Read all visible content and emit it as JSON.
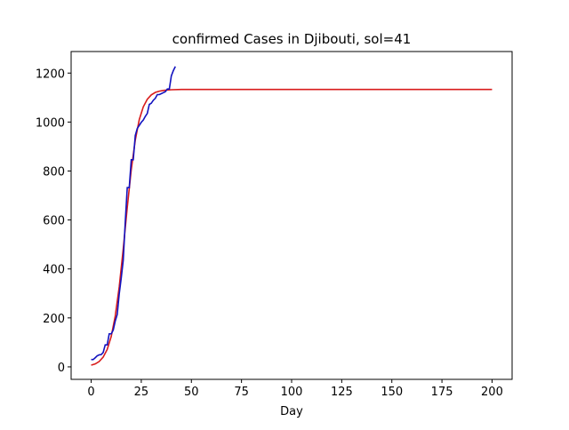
{
  "chart_data": {
    "type": "line",
    "title": "confirmed Cases in Djibouti, sol=41",
    "xlabel": "Day",
    "xlim": [
      -10,
      210
    ],
    "xticks": [
      0,
      25,
      50,
      75,
      100,
      125,
      150,
      175,
      200
    ],
    "ylim": [
      -51,
      1288
    ],
    "yticks": [
      0,
      200,
      400,
      600,
      800,
      1000,
      1200
    ],
    "grid": false,
    "series": [
      {
        "color": "#d81b1b",
        "x": [
          0,
          2,
          4,
          6,
          8,
          10,
          12,
          14,
          16,
          18,
          20,
          22,
          24,
          26,
          28,
          30,
          32,
          34,
          36,
          38,
          40,
          45,
          50,
          75,
          100,
          125,
          150,
          175,
          200
        ],
        "values": [
          7,
          12,
          22,
          40,
          71,
          124,
          207,
          327,
          482,
          651,
          805,
          926,
          1010,
          1062,
          1093,
          1111,
          1121,
          1126,
          1129,
          1131,
          1132,
          1133,
          1133,
          1133,
          1133,
          1133,
          1133,
          1133,
          1133
        ]
      },
      {
        "color": "#1212bf",
        "x": [
          0,
          1,
          2,
          3,
          4,
          5,
          6,
          7,
          8,
          9,
          10,
          11,
          12,
          13,
          14,
          15,
          16,
          17,
          18,
          19,
          20,
          21,
          22,
          23,
          24,
          25,
          26,
          27,
          28,
          29,
          30,
          31,
          32,
          33,
          34,
          35,
          36,
          37,
          38,
          39,
          40,
          41,
          42
        ],
        "values": [
          30,
          30,
          37,
          45,
          49,
          50,
          59,
          90,
          90,
          135,
          135,
          150,
          187,
          214,
          298,
          363,
          435,
          591,
          732,
          732,
          846,
          846,
          945,
          974,
          986,
          999,
          1008,
          1023,
          1035,
          1072,
          1077,
          1089,
          1097,
          1112,
          1112,
          1116,
          1120,
          1124,
          1135,
          1135,
          1189,
          1210,
          1227
        ]
      }
    ]
  }
}
